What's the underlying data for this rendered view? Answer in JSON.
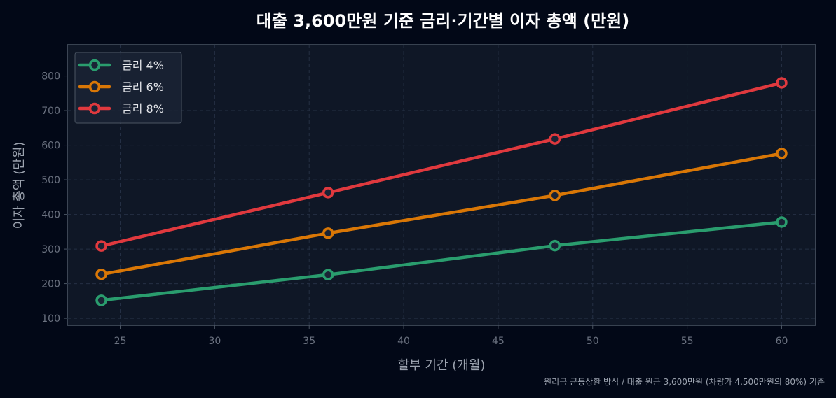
{
  "chart_data": {
    "type": "line",
    "title": "대출 3,600만원 기준 금리·기간별 이자 총액 (만원)",
    "xlabel": "할부 기간 (개월)",
    "ylabel": "이자 총액 (만원)",
    "footnote": "원리금 균등상환 방식 / 대출 원금 3,600만원 (차량가 4,500만원의 80%) 기준",
    "x": [
      24,
      36,
      48,
      60
    ],
    "xlim": [
      22.2,
      61.8
    ],
    "ylim": [
      80,
      890
    ],
    "xticks": [
      25,
      30,
      35,
      40,
      45,
      50,
      55,
      60
    ],
    "yticks": [
      100,
      200,
      300,
      400,
      500,
      600,
      700,
      800
    ],
    "grid": true,
    "legend_position": "top-left",
    "series": [
      {
        "name": "금리 4%",
        "color": "#2a9d6e",
        "values": [
          152,
          226,
          310,
          378
        ]
      },
      {
        "name": "금리 6%",
        "color": "#d97706",
        "values": [
          227,
          346,
          455,
          576
        ]
      },
      {
        "name": "금리 8%",
        "color": "#e0393e",
        "values": [
          309,
          463,
          618,
          780
        ]
      }
    ],
    "colors": {
      "background": "#020817",
      "plot_background": "#0f1726",
      "axis_spine": "#4b5563",
      "grid": "#253044",
      "tick_label": "#6b7280",
      "axis_label": "#9ca3af",
      "title": "#ffffff",
      "footnote": "#9ca3af",
      "legend_text": "#e5e7eb",
      "legend_border": "#4b5563"
    }
  }
}
